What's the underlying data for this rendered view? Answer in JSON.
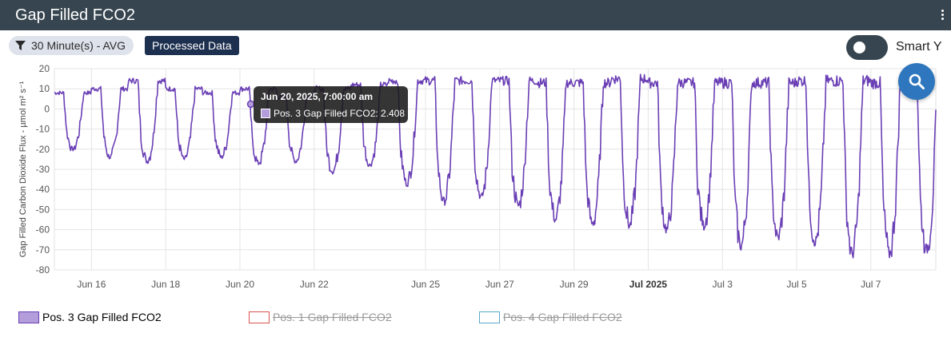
{
  "header": {
    "title": "Gap Filled FCO2"
  },
  "filters": {
    "interval_label": "30 Minute(s) - AVG",
    "processed_label": "Processed Data"
  },
  "smart_y": {
    "label": "Smart Y",
    "enabled": false
  },
  "colors": {
    "series": "#6a3fb5",
    "series_fill": "#b39ddb",
    "pos1": "#d9534f",
    "pos4": "#5aa9c8",
    "header": "#36454f",
    "zoom": "#2e76bd"
  },
  "tooltip": {
    "title": "Jun 20, 2025, 7:00:00 am",
    "series": "Pos. 3 Gap Filled FCO2",
    "value": "2.408",
    "text": "Pos. 3 Gap Filled FCO2: 2.408"
  },
  "chart_data": {
    "type": "line",
    "ylabel": "Gap Filled Carbon Dioxide Flux - µmol m² s⁻¹",
    "ylim": [
      -80,
      20
    ],
    "yticks": [
      20,
      10,
      0,
      -10,
      -20,
      -30,
      -40,
      -50,
      -60,
      -70,
      -80
    ],
    "xlim": [
      "2025-06-15 00:00",
      "2025-07-08 18:00"
    ],
    "xticks": [
      {
        "date": "2025-06-16",
        "label": "Jun 16",
        "bold": false
      },
      {
        "date": "2025-06-18",
        "label": "Jun 18",
        "bold": false
      },
      {
        "date": "2025-06-20",
        "label": "Jun 20",
        "bold": false
      },
      {
        "date": "2025-06-22",
        "label": "Jun 22",
        "bold": false
      },
      {
        "date": "2025-06-25",
        "label": "Jun 25",
        "bold": false
      },
      {
        "date": "2025-06-27",
        "label": "Jun 27",
        "bold": false
      },
      {
        "date": "2025-06-29",
        "label": "Jun 29",
        "bold": false
      },
      {
        "date": "2025-07-01",
        "label": "Jul 2025",
        "bold": true
      },
      {
        "date": "2025-07-03",
        "label": "Jul 3",
        "bold": false
      },
      {
        "date": "2025-07-05",
        "label": "Jul 5",
        "bold": false
      },
      {
        "date": "2025-07-07",
        "label": "Jul 7",
        "bold": false
      }
    ],
    "grid": true,
    "legend_position": "bottom-left",
    "highlight_point": {
      "date": "2025-06-20 07:00",
      "value": 2.408
    },
    "series": [
      {
        "name": "Pos. 3 Gap Filled FCO2",
        "visible": true,
        "daily": [
          {
            "date": "2025-06-15",
            "min": -20,
            "max": 8
          },
          {
            "date": "2025-06-16",
            "min": -24,
            "max": 10
          },
          {
            "date": "2025-06-17",
            "min": -26,
            "max": 14
          },
          {
            "date": "2025-06-18",
            "min": -25,
            "max": 10
          },
          {
            "date": "2025-06-19",
            "min": -24,
            "max": 8
          },
          {
            "date": "2025-06-20",
            "min": -27,
            "max": 10
          },
          {
            "date": "2025-06-21",
            "min": -26,
            "max": 6
          },
          {
            "date": "2025-06-22",
            "min": -31,
            "max": 10
          },
          {
            "date": "2025-06-23",
            "min": -28,
            "max": 12
          },
          {
            "date": "2025-06-24",
            "min": -37,
            "max": 14
          },
          {
            "date": "2025-06-25",
            "min": -46,
            "max": 14
          },
          {
            "date": "2025-06-26",
            "min": -44,
            "max": 14
          },
          {
            "date": "2025-06-27",
            "min": -48,
            "max": 14
          },
          {
            "date": "2025-06-28",
            "min": -55,
            "max": 13
          },
          {
            "date": "2025-06-29",
            "min": -57,
            "max": 13
          },
          {
            "date": "2025-06-30",
            "min": -58,
            "max": 15
          },
          {
            "date": "2025-07-01",
            "min": -60,
            "max": 13
          },
          {
            "date": "2025-07-02",
            "min": -58,
            "max": 13
          },
          {
            "date": "2025-07-03",
            "min": -68,
            "max": 13
          },
          {
            "date": "2025-07-04",
            "min": -64,
            "max": 13
          },
          {
            "date": "2025-07-05",
            "min": -66,
            "max": 14
          },
          {
            "date": "2025-07-06",
            "min": -72,
            "max": 14
          },
          {
            "date": "2025-07-07",
            "min": -72,
            "max": 13
          },
          {
            "date": "2025-07-08",
            "min": -70,
            "max": 12
          }
        ]
      },
      {
        "name": "Pos. 1 Gap Filled FCO2",
        "visible": false
      },
      {
        "name": "Pos. 4 Gap Filled FCO2",
        "visible": false
      }
    ]
  }
}
